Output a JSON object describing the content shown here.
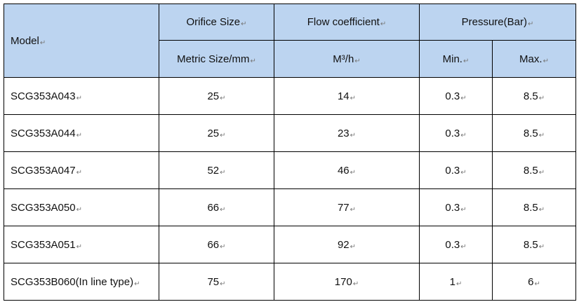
{
  "table": {
    "headers": {
      "model": "Model",
      "orifice_size": "Orifice Size",
      "flow_coefficient": "Flow coefficient",
      "pressure": "Pressure(Bar)",
      "metric_size": "Metric Size/mm",
      "flow_unit": "M³/h",
      "min": "Min.",
      "max": "Max."
    },
    "para_mark": "↵",
    "rows": [
      {
        "model": "SCG353A043",
        "size": "25",
        "flow": "14",
        "min": "0.3",
        "max": "8.5"
      },
      {
        "model": "SCG353A044",
        "size": "25",
        "flow": "23",
        "min": "0.3",
        "max": "8.5"
      },
      {
        "model": "SCG353A047",
        "size": "52",
        "flow": "46",
        "min": "0.3",
        "max": "8.5"
      },
      {
        "model": "SCG353A050",
        "size": "66",
        "flow": "77",
        "min": "0.3",
        "max": "8.5"
      },
      {
        "model": "SCG353A051",
        "size": "66",
        "flow": "92",
        "min": "0.3",
        "max": "8.5"
      },
      {
        "model": "SCG353B060(In line type)",
        "size": "75",
        "flow": "170",
        "min": "1",
        "max": "6"
      }
    ]
  },
  "colors": {
    "header_bg": "#bcd4f0",
    "border": "#000000",
    "text": "#111111"
  }
}
